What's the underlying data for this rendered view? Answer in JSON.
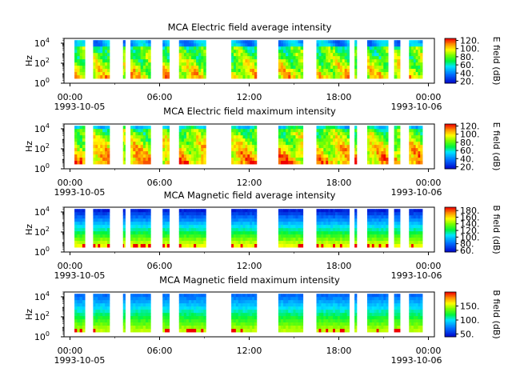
{
  "chart_data": [
    {
      "type": "heatmap",
      "title": "MCA  Electric field average intensity",
      "ylabel": "Hz",
      "y_scale": "log",
      "ylim": [
        1,
        30000
      ],
      "y_ticks": [
        "10",
        "10",
        "10"
      ],
      "y_tick_exponents": [
        "0",
        "2",
        "4"
      ],
      "x_ticks": [
        "00:00",
        "06:00",
        "12:00",
        "18:00",
        "00:00"
      ],
      "x_start_date": "1993-10-05",
      "x_end_date": "1993-10-06",
      "colorbar_label": "E field (dB)",
      "colorbar_ticks": [
        "20.",
        "40.",
        "60.",
        "80.",
        "100.",
        "120."
      ],
      "colorbar_range": [
        15,
        125
      ],
      "data_segments_hours": [
        [
          0.3,
          1.0
        ],
        [
          1.55,
          2.65
        ],
        [
          3.55,
          3.7
        ],
        [
          4.05,
          5.4
        ],
        [
          6.2,
          6.65
        ],
        [
          7.3,
          9.1
        ],
        [
          10.8,
          12.5
        ],
        [
          13.95,
          15.6
        ],
        [
          16.5,
          18.7
        ],
        [
          19.05,
          19.2
        ],
        [
          19.9,
          21.3
        ],
        [
          21.7,
          22.1
        ],
        [
          22.7,
          23.6
        ]
      ],
      "profile": "E-average"
    },
    {
      "type": "heatmap",
      "title": "MCA  Electric field maximum intensity",
      "ylabel": "Hz",
      "y_scale": "log",
      "ylim": [
        1,
        30000
      ],
      "y_ticks": [
        "10",
        "10",
        "10"
      ],
      "y_tick_exponents": [
        "0",
        "2",
        "4"
      ],
      "x_ticks": [
        "00:00",
        "06:00",
        "12:00",
        "18:00",
        "00:00"
      ],
      "x_start_date": "1993-10-05",
      "x_end_date": "1993-10-06",
      "colorbar_label": "E field (dB)",
      "colorbar_ticks": [
        "20.",
        "40.",
        "60.",
        "80.",
        "100.",
        "120."
      ],
      "colorbar_range": [
        15,
        125
      ],
      "data_segments_hours": [
        [
          0.3,
          1.0
        ],
        [
          1.55,
          2.65
        ],
        [
          3.55,
          3.7
        ],
        [
          4.05,
          5.4
        ],
        [
          6.2,
          6.65
        ],
        [
          7.3,
          9.1
        ],
        [
          10.8,
          12.5
        ],
        [
          13.95,
          15.6
        ],
        [
          16.5,
          18.7
        ],
        [
          19.05,
          19.2
        ],
        [
          19.9,
          21.3
        ],
        [
          21.7,
          22.1
        ],
        [
          22.7,
          23.6
        ]
      ],
      "profile": "E-maximum"
    },
    {
      "type": "heatmap",
      "title": "MCA  Magnetic field average intensity",
      "ylabel": "Hz",
      "y_scale": "log",
      "ylim": [
        1,
        30000
      ],
      "y_ticks": [
        "10",
        "10",
        "10"
      ],
      "y_tick_exponents": [
        "0",
        "2",
        "4"
      ],
      "x_ticks": [
        "00:00",
        "06:00",
        "12:00",
        "18:00",
        "00:00"
      ],
      "x_start_date": "1993-10-05",
      "x_end_date": "1993-10-06",
      "colorbar_label": "B field (dB)",
      "colorbar_ticks": [
        "60.",
        "80.",
        "100.",
        "120.",
        "140.",
        "160.",
        "180."
      ],
      "colorbar_range": [
        55,
        190
      ],
      "data_segments_hours": [
        [
          0.3,
          1.0
        ],
        [
          1.55,
          2.65
        ],
        [
          3.55,
          3.7
        ],
        [
          4.05,
          5.4
        ],
        [
          6.2,
          6.65
        ],
        [
          7.3,
          9.1
        ],
        [
          10.8,
          12.5
        ],
        [
          13.95,
          15.6
        ],
        [
          16.5,
          18.7
        ],
        [
          19.05,
          19.2
        ],
        [
          19.9,
          21.3
        ],
        [
          21.7,
          22.1
        ],
        [
          22.7,
          23.6
        ]
      ],
      "profile": "B-average"
    },
    {
      "type": "heatmap",
      "title": "MCA  Magnetic field maximum intensity",
      "ylabel": "Hz",
      "y_scale": "log",
      "ylim": [
        1,
        30000
      ],
      "y_ticks": [
        "10",
        "10",
        "10"
      ],
      "y_tick_exponents": [
        "0",
        "2",
        "4"
      ],
      "x_ticks": [
        "00:00",
        "06:00",
        "12:00",
        "18:00",
        "00:00"
      ],
      "x_start_date": "1993-10-05",
      "x_end_date": "1993-10-06",
      "colorbar_label": "B field (dB)",
      "colorbar_ticks": [
        "50.",
        "100.",
        "150."
      ],
      "colorbar_range": [
        40,
        200
      ],
      "data_segments_hours": [
        [
          0.3,
          1.0
        ],
        [
          1.55,
          2.65
        ],
        [
          3.55,
          3.7
        ],
        [
          4.05,
          5.4
        ],
        [
          6.2,
          6.65
        ],
        [
          7.3,
          9.1
        ],
        [
          10.8,
          12.5
        ],
        [
          13.95,
          15.6
        ],
        [
          16.5,
          18.7
        ],
        [
          19.05,
          19.2
        ],
        [
          19.9,
          21.3
        ],
        [
          21.7,
          22.1
        ],
        [
          22.7,
          23.6
        ]
      ],
      "profile": "B-maximum"
    }
  ]
}
